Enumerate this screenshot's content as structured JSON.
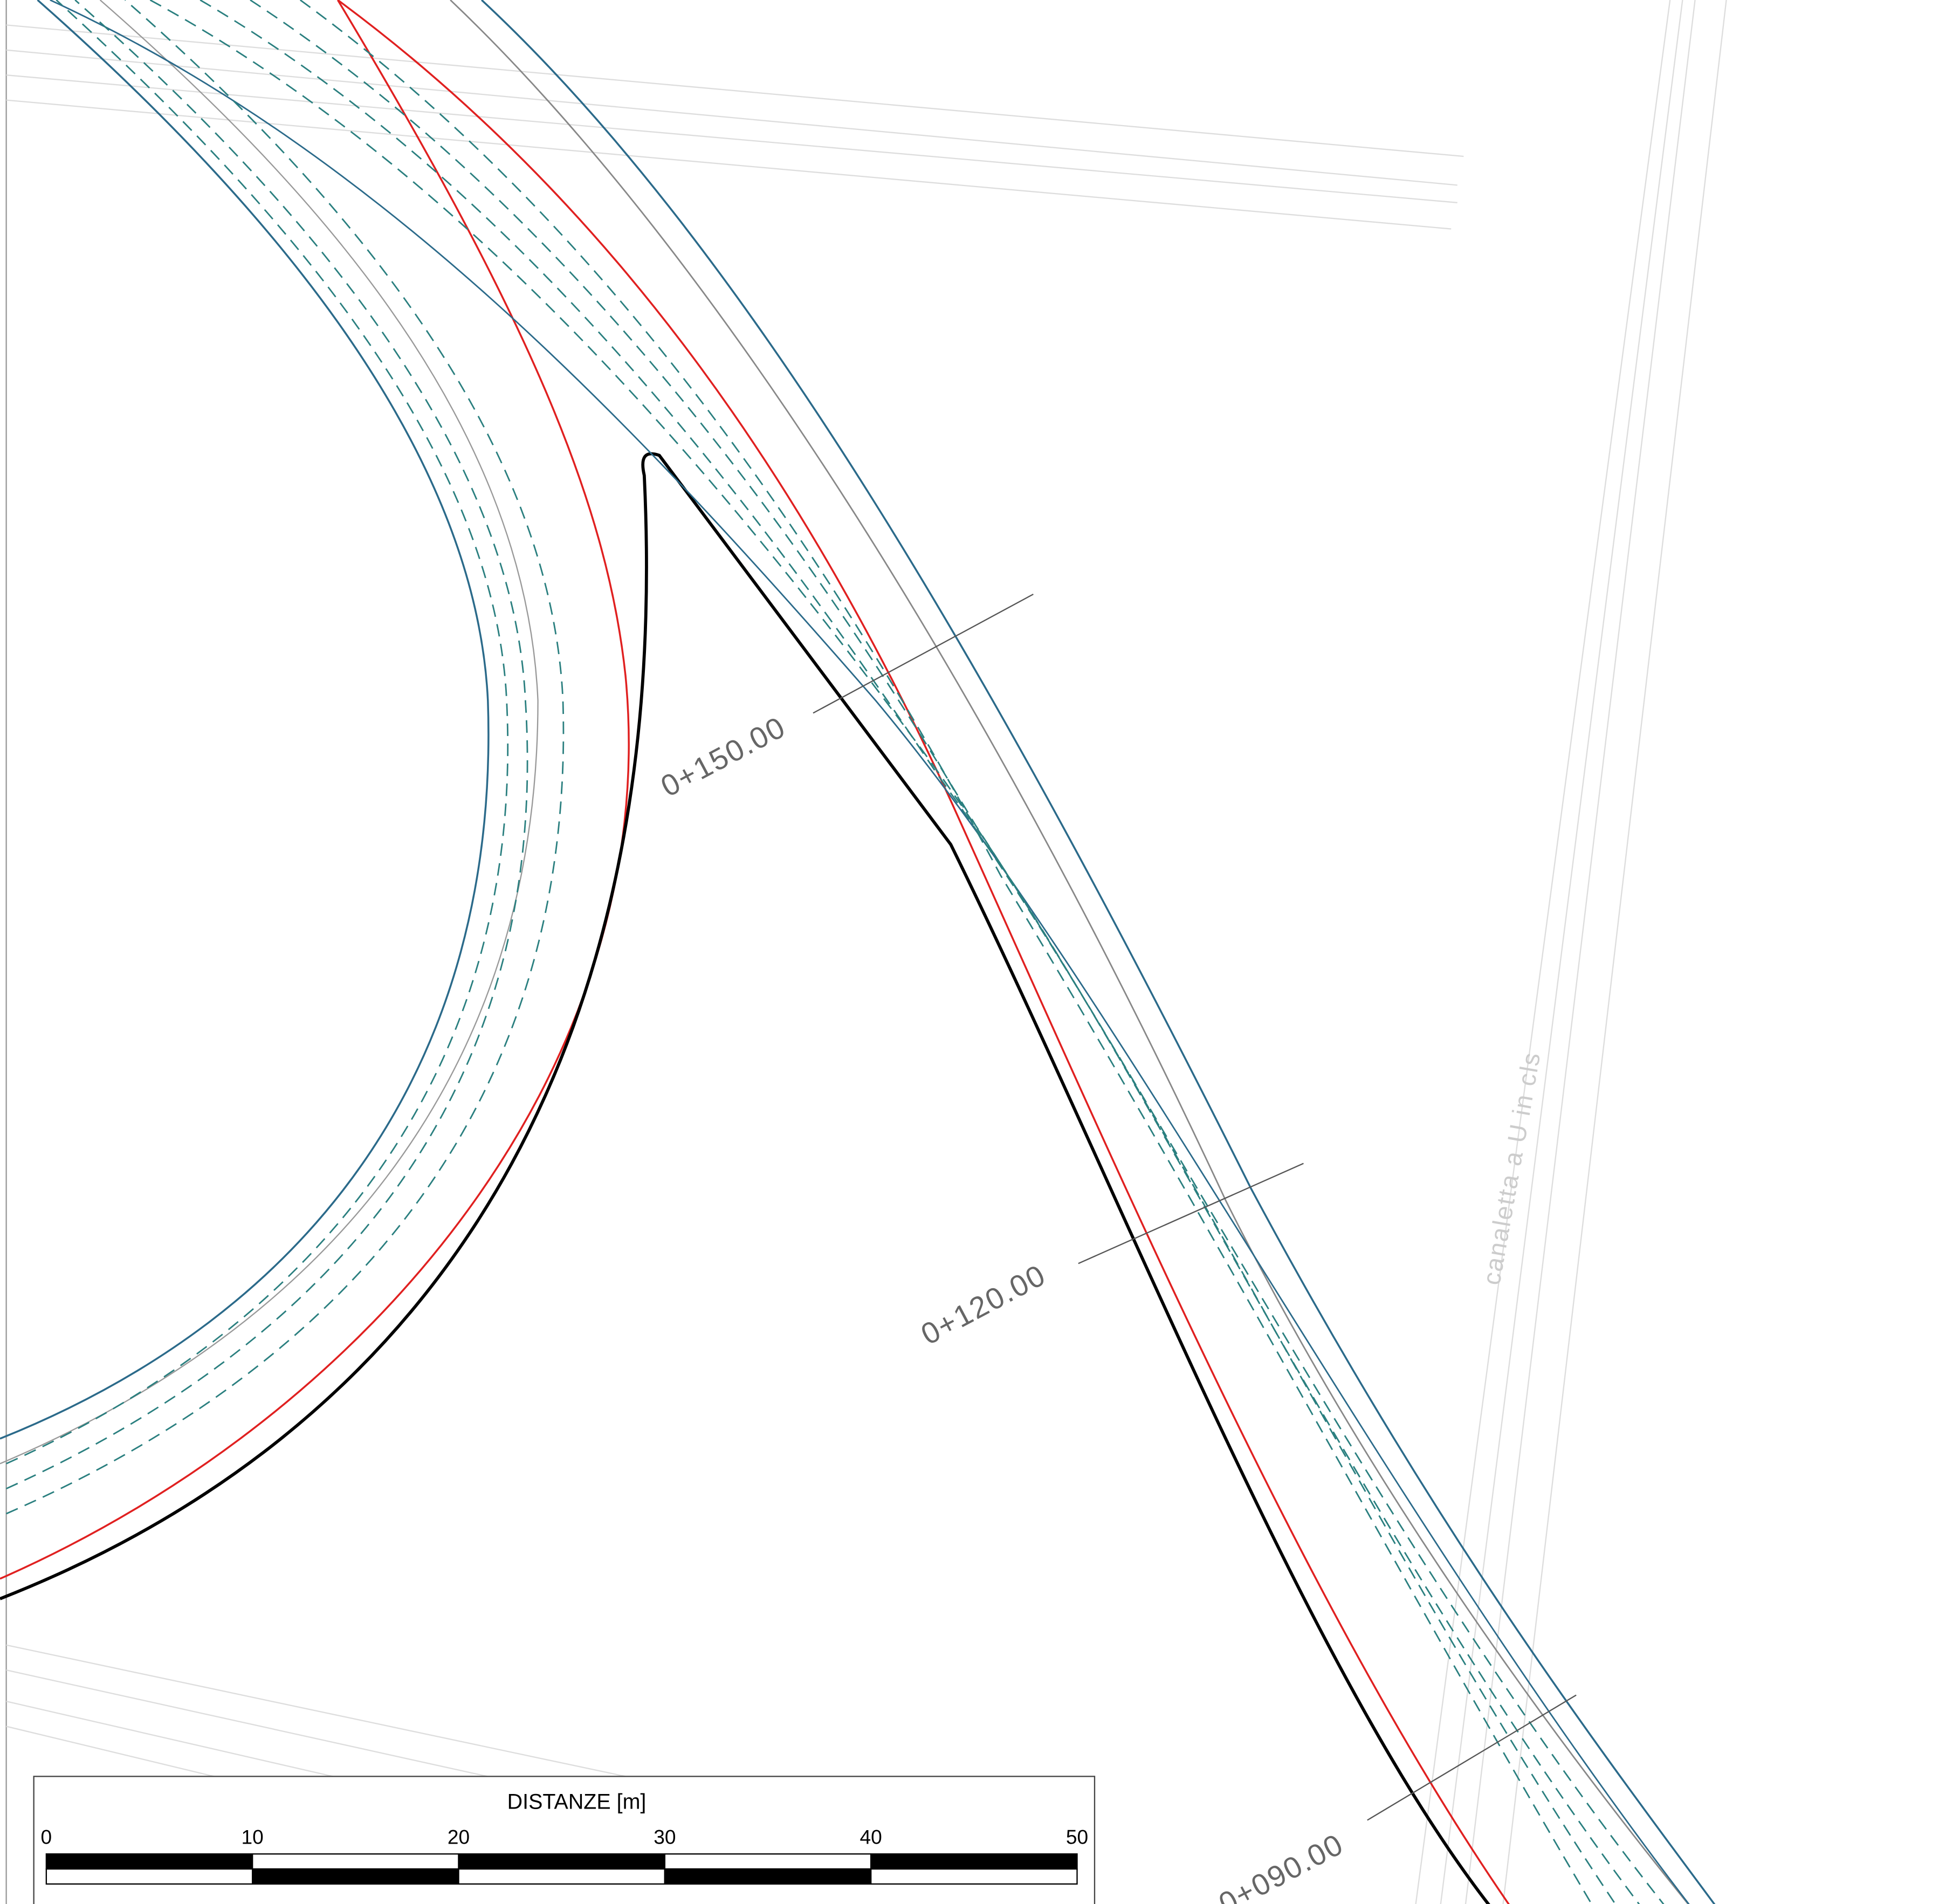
{
  "chainages": [
    "0+150.00",
    "0+120.00",
    "0+090.00"
  ],
  "note": "canaletta a U in cls",
  "scale_bar": {
    "title": "DISTANZE [m]",
    "ticks": [
      0,
      10,
      20,
      30,
      40,
      50
    ]
  }
}
